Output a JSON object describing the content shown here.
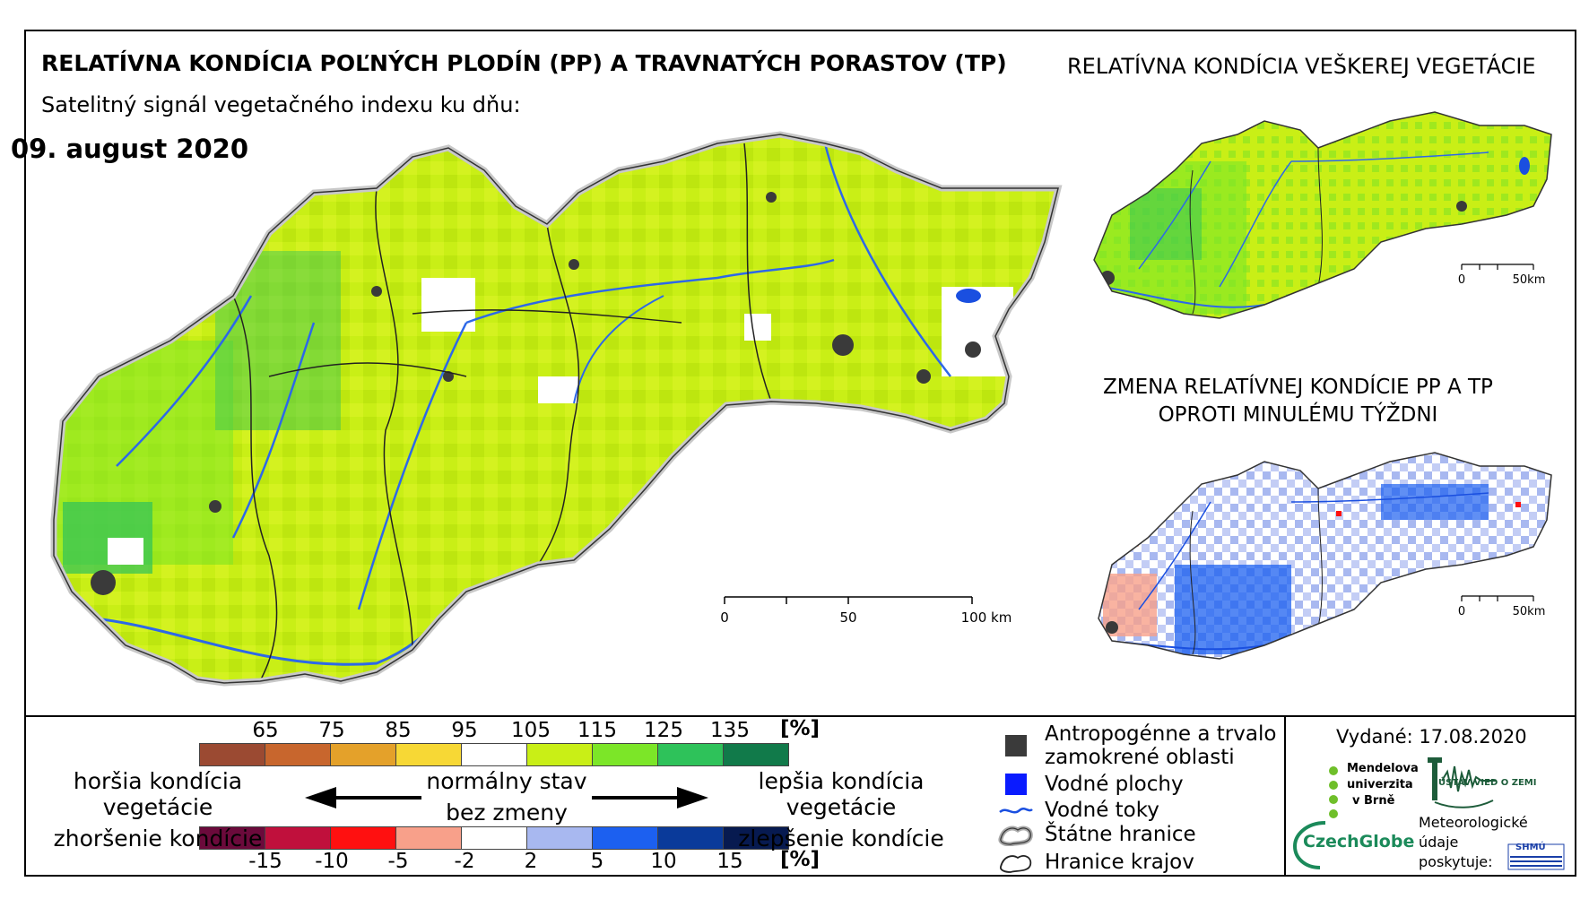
{
  "header": {
    "title_main": "RELATÍVNA KONDÍCIA POĽNÝCH PLODÍN (PP) A TRAVNATÝCH PORASTOV (TP)",
    "subtitle": "Satelitný signál vegetačného indexu ku dňu:",
    "date": "09. august 2020",
    "title_right": "RELATÍVNA KONDÍCIA VEŠKEREJ VEGETÁCIE",
    "title_change_line1": "ZMENA RELATÍVNEJ KONDÍCIE PP A TP",
    "title_change_line2": "OPROTI MINULÉMU TÝŽDNI"
  },
  "scalebars": {
    "main": {
      "labels": [
        "0",
        "50",
        "100 km"
      ]
    },
    "small_top": {
      "labels": [
        "0",
        "50km"
      ]
    },
    "small_bottom": {
      "labels": [
        "0",
        "50km"
      ]
    }
  },
  "legend_condition": {
    "ticks": [
      "65",
      "75",
      "85",
      "95",
      "105",
      "115",
      "125",
      "135"
    ],
    "unit": "[%]",
    "colors": [
      "#9b4a32",
      "#c8662d",
      "#e4a12a",
      "#f7d835",
      "#ffffff",
      "#c9ef16",
      "#7ce628",
      "#2ec25a",
      "#117a4a"
    ]
  },
  "legend_change": {
    "ticks": [
      "-15",
      "-10",
      "-5",
      "-2",
      "2",
      "5",
      "10",
      "15"
    ],
    "unit": "[%]",
    "colors": [
      "#6b0a3b",
      "#c0103c",
      "#ff1010",
      "#f8a08a",
      "#ffffff",
      "#a8b8f0",
      "#1c60f0",
      "#0a3a9a",
      "#071a50"
    ]
  },
  "legend_labels": {
    "worse_condition": "horšia kondícia vegetácie",
    "worse_change": "zhoršenie kondície",
    "normal": "normálny stav",
    "no_change": "bez zmeny",
    "better_condition": "lepšia kondícia vegetácie",
    "better_change": "zlepšenie kondície"
  },
  "map_legend": {
    "urban_line1": "Antropogénne a trvalo",
    "urban_line2": "zamokrené oblasti",
    "water_bodies": "Vodné plochy",
    "rivers": "Vodné toky",
    "state_border": "Štátne hranice",
    "region_border": "Hranice krajov"
  },
  "issued": "Vydané: 17.08.2020",
  "logos": {
    "mendelu_line1": "Mendelova",
    "mendelu_line2": "univerzita",
    "mendelu_line3": "v Brně",
    "czechglobe": "CzechGlobe",
    "uvz": "ÚSTAV VIED O ZEMI",
    "meteo_line1": "Meteorologické",
    "meteo_line2": "údaje",
    "meteo_line3": "poskytuje:",
    "shmu": "SHMÚ"
  },
  "colors": {
    "green_main": "#c9ef16",
    "green_mid": "#7ce628",
    "green_dark": "#2ec25a",
    "urban": "#3a3a3a",
    "water": "#1a4fe0",
    "change_light_blue": "#a8b8f0",
    "change_blue": "#1c60f0"
  }
}
